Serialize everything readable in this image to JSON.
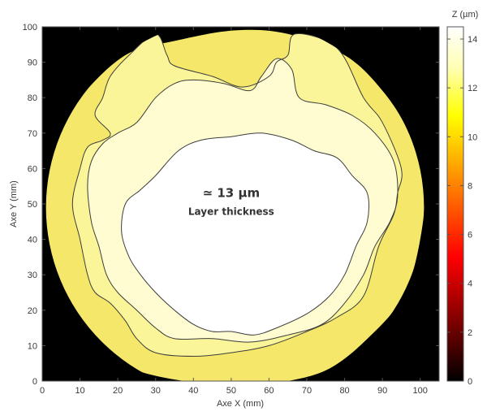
{
  "chart_data": {
    "type": "heatmap",
    "title": "",
    "xlabel": "Axe X (mm)",
    "ylabel": "Axe Y (mm)",
    "xlim": [
      0,
      105
    ],
    "ylim": [
      0,
      100
    ],
    "xticks": [
      0,
      10,
      20,
      30,
      40,
      50,
      60,
      70,
      80,
      90,
      100
    ],
    "yticks": [
      0,
      10,
      20,
      30,
      40,
      50,
      60,
      70,
      80,
      90,
      100
    ],
    "colorbar": {
      "label": "Z (µm)",
      "range": [
        0,
        14.5
      ],
      "ticks": [
        0,
        2,
        4,
        6,
        8,
        10,
        12,
        14
      ],
      "colormap": "hot",
      "stops": [
        "#000000",
        "#800000",
        "#ff0000",
        "#ff8000",
        "#ffff00",
        "#ffffb0",
        "#ffffff"
      ]
    },
    "background_color": "#000000",
    "sample": {
      "shape": "circle",
      "center": [
        51,
        49
      ],
      "radius": 50
    },
    "contour_levels_um": [
      11.5,
      12.5,
      13.5,
      14.5
    ],
    "level_colors": {
      "11.5": "#f5e76a",
      "12.5": "#fbf59a",
      "13.5": "#fefcd0",
      "14.5": "#ffffff"
    },
    "annotation": {
      "value": "≃ 13 µm",
      "label": "Layer thickness",
      "position": [
        50,
        52
      ]
    },
    "regions": [
      {
        "level": 11.5,
        "points": [
          [
            51,
            99
          ],
          [
            35,
            96
          ],
          [
            22,
            92
          ],
          [
            10,
            80
          ],
          [
            3,
            68
          ],
          [
            0,
            55
          ],
          [
            0,
            40
          ],
          [
            3,
            25
          ],
          [
            12,
            12
          ],
          [
            25,
            3
          ],
          [
            45,
            -1
          ],
          [
            58,
            -1
          ],
          [
            75,
            3
          ],
          [
            88,
            14
          ],
          [
            96,
            25
          ],
          [
            100,
            40
          ],
          [
            101,
            55
          ],
          [
            97,
            70
          ],
          [
            90,
            82
          ],
          [
            80,
            92
          ],
          [
            65,
            98
          ]
        ]
      },
      {
        "level": 12.5,
        "points": [
          [
            30,
            98
          ],
          [
            33,
            92
          ],
          [
            35,
            89
          ],
          [
            45,
            86
          ],
          [
            53,
            83
          ],
          [
            60,
            86
          ],
          [
            62,
            90
          ],
          [
            65,
            92
          ],
          [
            67,
            98
          ],
          [
            78,
            94
          ],
          [
            85,
            80
          ],
          [
            90,
            73
          ],
          [
            95,
            60
          ],
          [
            94,
            53
          ],
          [
            93,
            47
          ],
          [
            89,
            38
          ],
          [
            85,
            24
          ],
          [
            78,
            18
          ],
          [
            70,
            14
          ],
          [
            60,
            10
          ],
          [
            50,
            8
          ],
          [
            40,
            7
          ],
          [
            30,
            8
          ],
          [
            25,
            12
          ],
          [
            22,
            17
          ],
          [
            18,
            22
          ],
          [
            14,
            25
          ],
          [
            12,
            30
          ],
          [
            10,
            40
          ],
          [
            8,
            50
          ],
          [
            10,
            60
          ],
          [
            12,
            66
          ],
          [
            16,
            68
          ],
          [
            18,
            70
          ],
          [
            14,
            75
          ],
          [
            16,
            80
          ],
          [
            18,
            86
          ],
          [
            23,
            92
          ]
        ]
      },
      {
        "level": 13.5,
        "points": [
          [
            40,
            85
          ],
          [
            48,
            84
          ],
          [
            55,
            82
          ],
          [
            58,
            86
          ],
          [
            62,
            91
          ],
          [
            66,
            88
          ],
          [
            68,
            80
          ],
          [
            75,
            78
          ],
          [
            82,
            75
          ],
          [
            88,
            70
          ],
          [
            93,
            62
          ],
          [
            94,
            52
          ],
          [
            92,
            45
          ],
          [
            88,
            38
          ],
          [
            85,
            30
          ],
          [
            80,
            22
          ],
          [
            74,
            16
          ],
          [
            65,
            13
          ],
          [
            55,
            11
          ],
          [
            45,
            12
          ],
          [
            35,
            12
          ],
          [
            30,
            15
          ],
          [
            25,
            20
          ],
          [
            20,
            25
          ],
          [
            17,
            30
          ],
          [
            15,
            38
          ],
          [
            13,
            45
          ],
          [
            12,
            55
          ],
          [
            13,
            62
          ],
          [
            16,
            67
          ],
          [
            20,
            70
          ],
          [
            25,
            73
          ],
          [
            30,
            80
          ],
          [
            35,
            84
          ]
        ]
      },
      {
        "level": 14.5,
        "points": [
          [
            30,
            58
          ],
          [
            36,
            65
          ],
          [
            42,
            68
          ],
          [
            50,
            69
          ],
          [
            58,
            70
          ],
          [
            66,
            68
          ],
          [
            72,
            65
          ],
          [
            78,
            63
          ],
          [
            82,
            58
          ],
          [
            86,
            53
          ],
          [
            86,
            45
          ],
          [
            83,
            38
          ],
          [
            80,
            30
          ],
          [
            76,
            24
          ],
          [
            70,
            19
          ],
          [
            62,
            15
          ],
          [
            56,
            13
          ],
          [
            50,
            14
          ],
          [
            45,
            14
          ],
          [
            40,
            16
          ],
          [
            35,
            20
          ],
          [
            30,
            25
          ],
          [
            26,
            30
          ],
          [
            23,
            35
          ],
          [
            21,
            42
          ],
          [
            22,
            50
          ],
          [
            26,
            54
          ]
        ]
      }
    ]
  }
}
